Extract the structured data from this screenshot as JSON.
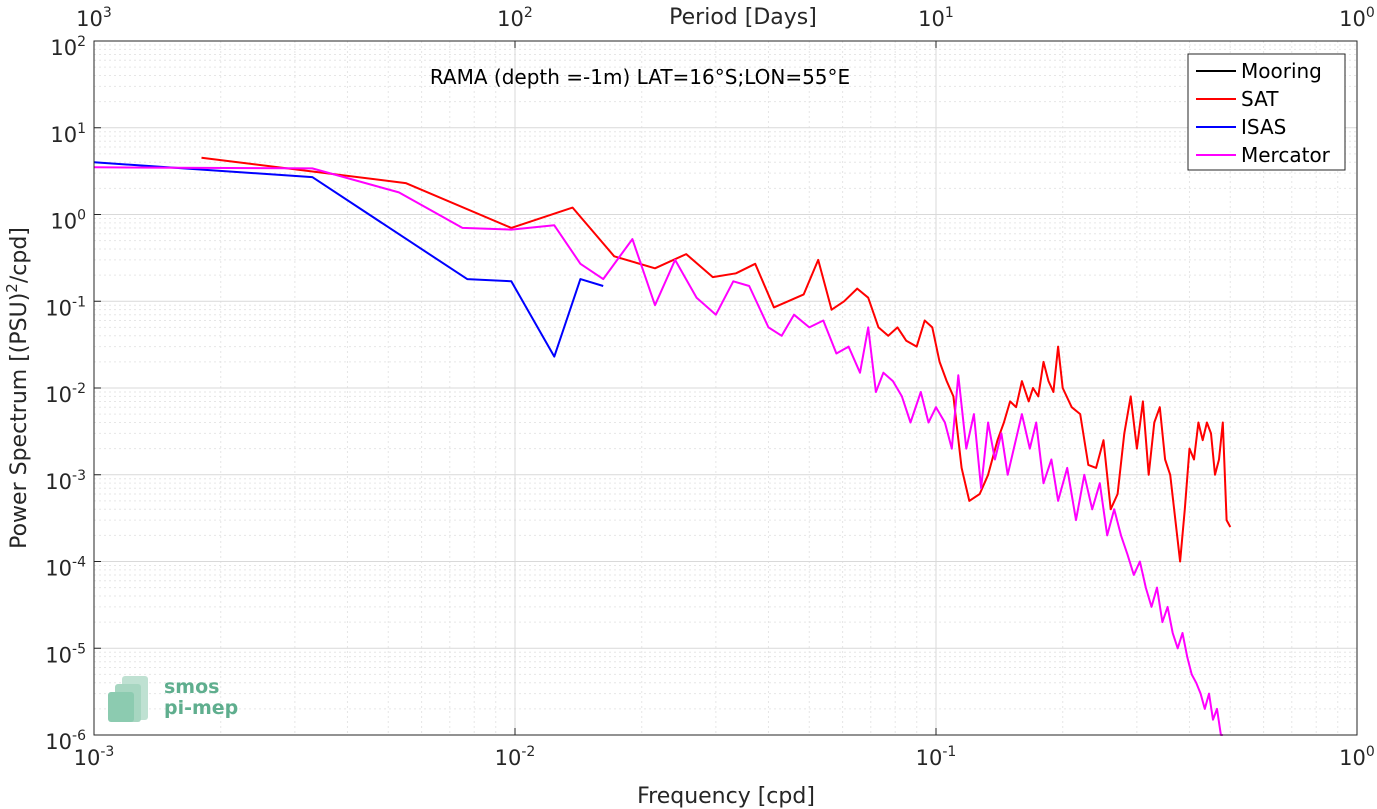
{
  "chart_data": {
    "type": "line",
    "title": "RAMA (depth =-1m) LAT=16°S;LON=55°E",
    "xlabel": "Frequency [cpd]",
    "ylabel": "Power Spectrum [(PSU)",
    "ylabel_sup": "2",
    "ylabel_tail": "/cpd]",
    "top_xlabel": "Period [Days]",
    "x_scale": "log",
    "y_scale": "log",
    "xlim": [
      0.001,
      1
    ],
    "ylim": [
      1e-06,
      100
    ],
    "grid": true,
    "legend_position": "top-right",
    "x_ticks": [
      {
        "value": 0.001,
        "base": "10",
        "exp": "-3"
      },
      {
        "value": 0.01,
        "base": "10",
        "exp": "-2"
      },
      {
        "value": 0.1,
        "base": "10",
        "exp": "-1"
      },
      {
        "value": 1,
        "base": "10",
        "exp": "0"
      }
    ],
    "top_x_ticks": [
      {
        "value": 0.001,
        "base": "10",
        "exp": "3"
      },
      {
        "value": 0.01,
        "base": "10",
        "exp": "2"
      },
      {
        "value": 0.1,
        "base": "10",
        "exp": "1"
      },
      {
        "value": 1,
        "base": "10",
        "exp": "0"
      }
    ],
    "y_ticks": [
      {
        "value": 100,
        "base": "10",
        "exp": "2"
      },
      {
        "value": 10,
        "base": "10",
        "exp": "1"
      },
      {
        "value": 1,
        "base": "10",
        "exp": "0"
      },
      {
        "value": 0.1,
        "base": "10",
        "exp": "-1"
      },
      {
        "value": 0.01,
        "base": "10",
        "exp": "-2"
      },
      {
        "value": 0.001,
        "base": "10",
        "exp": "-3"
      },
      {
        "value": 0.0001,
        "base": "10",
        "exp": "-4"
      },
      {
        "value": 1e-05,
        "base": "10",
        "exp": "-5"
      },
      {
        "value": 1e-06,
        "base": "10",
        "exp": "-6"
      }
    ],
    "series": [
      {
        "name": "Mooring",
        "color": "#000000",
        "x": [],
        "y": []
      },
      {
        "name": "SAT",
        "color": "#ff0000",
        "x": [
          0.0018,
          0.0055,
          0.0098,
          0.0137,
          0.0172,
          0.0215,
          0.0255,
          0.0295,
          0.0335,
          0.0372,
          0.0412,
          0.0445,
          0.0485,
          0.0525,
          0.0565,
          0.0605,
          0.065,
          0.069,
          0.073,
          0.077,
          0.081,
          0.085,
          0.09,
          0.094,
          0.098,
          0.102,
          0.106,
          0.11,
          0.115,
          0.12,
          0.127,
          0.133,
          0.14,
          0.145,
          0.15,
          0.155,
          0.16,
          0.166,
          0.17,
          0.175,
          0.18,
          0.185,
          0.19,
          0.195,
          0.2,
          0.21,
          0.22,
          0.23,
          0.24,
          0.25,
          0.26,
          0.27,
          0.28,
          0.29,
          0.3,
          0.31,
          0.32,
          0.33,
          0.34,
          0.35,
          0.36,
          0.38,
          0.39,
          0.4,
          0.41,
          0.42,
          0.43,
          0.44,
          0.45,
          0.46,
          0.47,
          0.48,
          0.49,
          0.5
        ],
        "y": [
          4.5,
          2.3,
          0.7,
          1.2,
          0.33,
          0.24,
          0.35,
          0.19,
          0.21,
          0.27,
          0.085,
          0.1,
          0.12,
          0.3,
          0.08,
          0.1,
          0.14,
          0.11,
          0.05,
          0.04,
          0.05,
          0.035,
          0.03,
          0.06,
          0.05,
          0.02,
          0.012,
          0.008,
          0.0012,
          0.0005,
          0.0006,
          0.001,
          0.0025,
          0.004,
          0.007,
          0.006,
          0.012,
          0.007,
          0.01,
          0.008,
          0.02,
          0.012,
          0.009,
          0.03,
          0.01,
          0.006,
          0.005,
          0.0013,
          0.0012,
          0.0025,
          0.0004,
          0.0006,
          0.003,
          0.008,
          0.002,
          0.007,
          0.001,
          0.004,
          0.006,
          0.0015,
          0.001,
          0.0001,
          0.0004,
          0.002,
          0.0015,
          0.004,
          0.0025,
          0.004,
          0.003,
          0.001,
          0.0015,
          0.004,
          0.0003,
          0.00025
        ]
      },
      {
        "name": "ISAS",
        "color": "#0000ff",
        "x": [
          0.001,
          0.0033,
          0.0077,
          0.0098,
          0.0124,
          0.0143,
          0.0162
        ],
        "y": [
          4.0,
          2.7,
          0.18,
          0.17,
          0.023,
          0.18,
          0.15
        ]
      },
      {
        "name": "Mercator",
        "color": "#ff00ff",
        "x": [
          0.001,
          0.0033,
          0.0053,
          0.0075,
          0.0098,
          0.0124,
          0.0143,
          0.0162,
          0.019,
          0.0215,
          0.024,
          0.027,
          0.03,
          0.033,
          0.036,
          0.04,
          0.043,
          0.046,
          0.05,
          0.054,
          0.058,
          0.062,
          0.066,
          0.069,
          0.072,
          0.075,
          0.079,
          0.083,
          0.087,
          0.092,
          0.096,
          0.1,
          0.105,
          0.109,
          0.113,
          0.118,
          0.123,
          0.128,
          0.133,
          0.138,
          0.143,
          0.148,
          0.153,
          0.16,
          0.167,
          0.173,
          0.18,
          0.188,
          0.195,
          0.205,
          0.215,
          0.225,
          0.235,
          0.245,
          0.255,
          0.265,
          0.275,
          0.285,
          0.295,
          0.305,
          0.315,
          0.325,
          0.335,
          0.345,
          0.355,
          0.365,
          0.375,
          0.385,
          0.395,
          0.405,
          0.415,
          0.425,
          0.435,
          0.445,
          0.455,
          0.465,
          0.475,
          0.48
        ],
        "y": [
          3.5,
          3.4,
          1.8,
          0.7,
          0.67,
          0.75,
          0.27,
          0.18,
          0.52,
          0.09,
          0.3,
          0.11,
          0.07,
          0.17,
          0.15,
          0.05,
          0.04,
          0.07,
          0.05,
          0.06,
          0.025,
          0.03,
          0.015,
          0.05,
          0.009,
          0.015,
          0.012,
          0.008,
          0.004,
          0.009,
          0.004,
          0.006,
          0.004,
          0.002,
          0.014,
          0.002,
          0.005,
          0.0007,
          0.004,
          0.0015,
          0.003,
          0.001,
          0.002,
          0.005,
          0.002,
          0.004,
          0.0008,
          0.0015,
          0.0005,
          0.0012,
          0.0003,
          0.001,
          0.0004,
          0.0008,
          0.0002,
          0.0004,
          0.0002,
          0.00012,
          7e-05,
          0.0001,
          5e-05,
          3e-05,
          5e-05,
          2e-05,
          3e-05,
          1.5e-05,
          1e-05,
          1.5e-05,
          8e-06,
          5e-06,
          4e-06,
          3e-06,
          2e-06,
          3e-06,
          1.5e-06,
          2e-06,
          1e-06,
          8e-07
        ]
      }
    ]
  },
  "logo": {
    "line1": "smos",
    "line2": "pi-mep",
    "color": "#5fae8e"
  }
}
